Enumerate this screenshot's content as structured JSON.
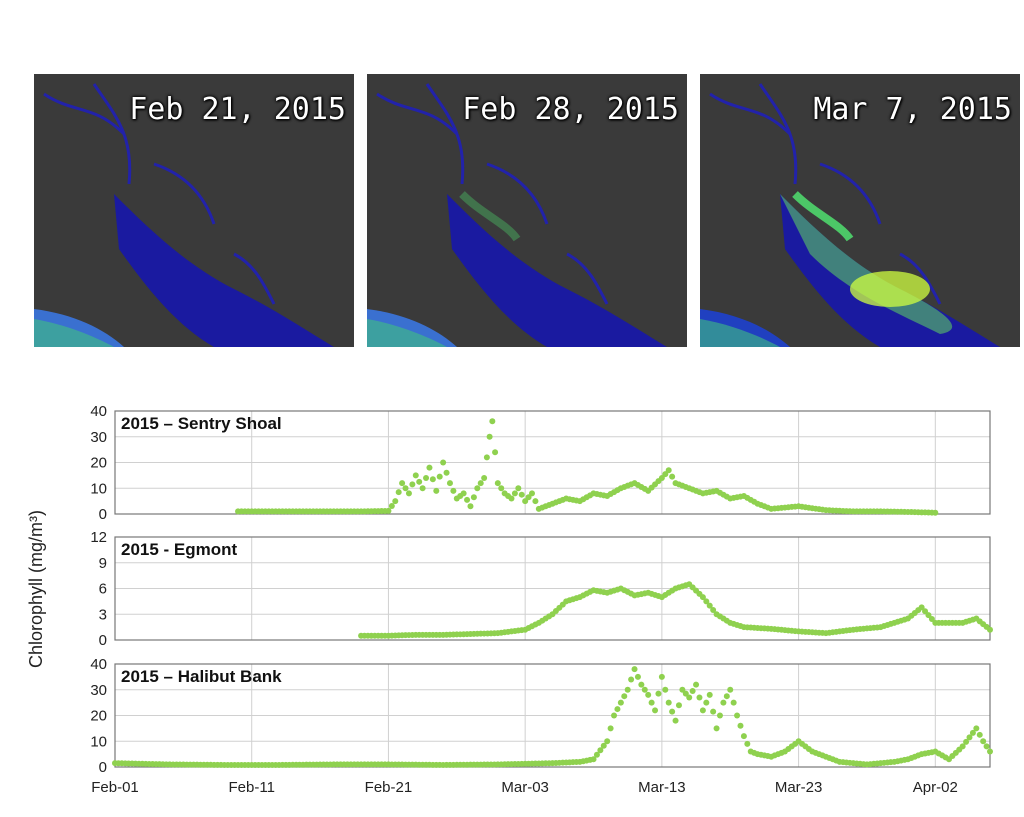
{
  "maps": [
    {
      "label": "Feb 21, 2015",
      "bloom_intensity": 0.15
    },
    {
      "label": "Feb 28, 2015",
      "bloom_intensity": 0.35
    },
    {
      "label": "Mar 7, 2015",
      "bloom_intensity": 0.85
    }
  ],
  "chart_data": {
    "type": "scatter",
    "ylabel": "Chlorophyll (mg/m³)",
    "x_ticks": [
      "Feb-01",
      "Feb-11",
      "Feb-21",
      "Mar-03",
      "Mar-13",
      "Mar-23",
      "Apr-02"
    ],
    "x_range_days_from_feb01": [
      0,
      64
    ],
    "marker_color": "#8fd14f",
    "grid": true,
    "panels": [
      {
        "title": "2015 – Sentry Shoal",
        "ylim": [
          0,
          40
        ],
        "yticks": [
          0,
          10,
          20,
          30,
          40
        ],
        "points": [
          [
            9,
            1
          ],
          [
            12,
            1
          ],
          [
            15,
            1
          ],
          [
            18,
            1
          ],
          [
            20,
            1.2
          ],
          [
            20.5,
            5
          ],
          [
            21,
            12
          ],
          [
            21.5,
            8
          ],
          [
            22,
            15
          ],
          [
            22.5,
            10
          ],
          [
            23,
            18
          ],
          [
            23.5,
            9
          ],
          [
            24,
            20
          ],
          [
            24.5,
            12
          ],
          [
            25,
            6
          ],
          [
            25.5,
            8
          ],
          [
            26,
            3
          ],
          [
            26.5,
            10
          ],
          [
            27,
            14
          ],
          [
            27.2,
            22
          ],
          [
            27.4,
            30
          ],
          [
            27.6,
            36
          ],
          [
            28,
            12
          ],
          [
            28.5,
            8
          ],
          [
            29,
            6
          ],
          [
            29.5,
            10
          ],
          [
            30,
            5
          ],
          [
            30.5,
            8
          ],
          [
            31,
            2
          ],
          [
            32,
            4
          ],
          [
            33,
            6
          ],
          [
            34,
            5
          ],
          [
            35,
            8
          ],
          [
            36,
            7
          ],
          [
            37,
            10
          ],
          [
            38,
            12
          ],
          [
            39,
            9
          ],
          [
            40,
            14
          ],
          [
            40.5,
            17
          ],
          [
            41,
            12
          ],
          [
            42,
            10
          ],
          [
            43,
            8
          ],
          [
            44,
            9
          ],
          [
            45,
            6
          ],
          [
            46,
            7
          ],
          [
            47,
            4
          ],
          [
            48,
            2
          ],
          [
            50,
            3
          ],
          [
            52,
            1.5
          ],
          [
            54,
            1
          ],
          [
            56,
            1
          ],
          [
            58,
            0.8
          ],
          [
            60,
            0.5
          ]
        ]
      },
      {
        "title": "2015 - Egmont",
        "ylim": [
          0,
          12
        ],
        "yticks": [
          0,
          3,
          6,
          9,
          12
        ],
        "points": [
          [
            18,
            0.5
          ],
          [
            20,
            0.5
          ],
          [
            22,
            0.6
          ],
          [
            24,
            0.6
          ],
          [
            26,
            0.7
          ],
          [
            28,
            0.8
          ],
          [
            30,
            1.2
          ],
          [
            31,
            2
          ],
          [
            32,
            3
          ],
          [
            33,
            4.5
          ],
          [
            34,
            5
          ],
          [
            35,
            5.8
          ],
          [
            36,
            5.5
          ],
          [
            37,
            6
          ],
          [
            38,
            5.2
          ],
          [
            39,
            5.5
          ],
          [
            40,
            5
          ],
          [
            41,
            6
          ],
          [
            42,
            6.5
          ],
          [
            43,
            5
          ],
          [
            44,
            3
          ],
          [
            45,
            2
          ],
          [
            46,
            1.5
          ],
          [
            48,
            1.3
          ],
          [
            50,
            1
          ],
          [
            52,
            0.8
          ],
          [
            54,
            1.2
          ],
          [
            56,
            1.5
          ],
          [
            58,
            2.5
          ],
          [
            59,
            3.8
          ],
          [
            60,
            2
          ],
          [
            62,
            2
          ],
          [
            63,
            2.5
          ],
          [
            64,
            1.2
          ]
        ]
      },
      {
        "title": "2015 – Halibut Bank",
        "ylim": [
          0,
          40
        ],
        "yticks": [
          0,
          10,
          20,
          30,
          40
        ],
        "points": [
          [
            0,
            1.5
          ],
          [
            4,
            1
          ],
          [
            8,
            0.8
          ],
          [
            12,
            0.8
          ],
          [
            16,
            1
          ],
          [
            20,
            1
          ],
          [
            24,
            0.8
          ],
          [
            28,
            1
          ],
          [
            32,
            1.5
          ],
          [
            34,
            2
          ],
          [
            35,
            3
          ],
          [
            36,
            10
          ],
          [
            36.5,
            20
          ],
          [
            37,
            25
          ],
          [
            37.5,
            30
          ],
          [
            38,
            38
          ],
          [
            38.5,
            32
          ],
          [
            39,
            28
          ],
          [
            39.5,
            22
          ],
          [
            40,
            35
          ],
          [
            40.5,
            25
          ],
          [
            41,
            18
          ],
          [
            41.5,
            30
          ],
          [
            42,
            27
          ],
          [
            42.5,
            32
          ],
          [
            43,
            22
          ],
          [
            43.5,
            28
          ],
          [
            44,
            15
          ],
          [
            44.5,
            25
          ],
          [
            45,
            30
          ],
          [
            45.5,
            20
          ],
          [
            46,
            12
          ],
          [
            46.5,
            6
          ],
          [
            47,
            5
          ],
          [
            48,
            4
          ],
          [
            49,
            6
          ],
          [
            50,
            10
          ],
          [
            51,
            6
          ],
          [
            52,
            4
          ],
          [
            53,
            2
          ],
          [
            54,
            1.5
          ],
          [
            55,
            1
          ],
          [
            56,
            1.5
          ],
          [
            57,
            2
          ],
          [
            58,
            3
          ],
          [
            59,
            5
          ],
          [
            60,
            6
          ],
          [
            61,
            3
          ],
          [
            62,
            8
          ],
          [
            63,
            15
          ],
          [
            63.5,
            10
          ],
          [
            64,
            6
          ]
        ]
      }
    ]
  }
}
